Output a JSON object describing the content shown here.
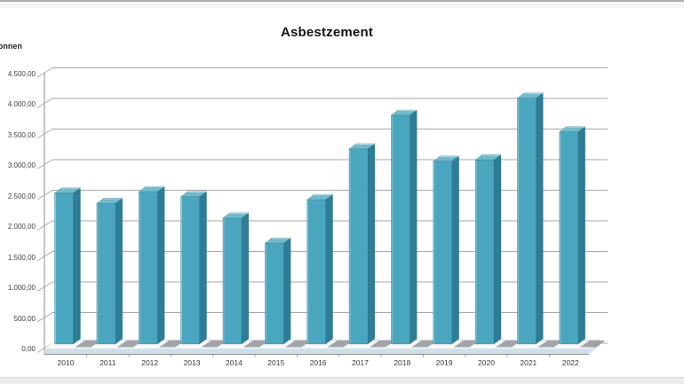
{
  "page": {
    "top_bar_color": "#a9abac",
    "footer_color": "#ebeced",
    "background": "#ffffff"
  },
  "chart_data": {
    "type": "bar",
    "style": "3d-column",
    "title": "Asbestzement",
    "ylabel": "Tonnen",
    "xlabel": "",
    "categories": [
      "2010",
      "2011",
      "2012",
      "2013",
      "2014",
      "2015",
      "2016",
      "2017",
      "2018",
      "2019",
      "2020",
      "2021",
      "2022"
    ],
    "values": [
      2470,
      2300,
      2490,
      2410,
      2060,
      1650,
      2360,
      3190,
      3740,
      2990,
      3010,
      4020,
      3470
    ],
    "ylim": [
      0,
      4500
    ],
    "ytick_step": 500,
    "ytick_labels": [
      "0,00",
      "500,00",
      "1.000,00",
      "1.500,00",
      "2.000,00",
      "2.500,00",
      "3.000,00",
      "3.500,00",
      "4.000,00",
      "4.500,00"
    ],
    "grid": true,
    "legend": null,
    "colors": {
      "bar_front": "#4aa6be",
      "bar_side": "#2e7d96",
      "bar_top": "#72bacb",
      "bar_outline": "#23657d",
      "gridline": "#a7a7a7",
      "axis": "#8f8f8f",
      "floor_front": "#cfe0e9",
      "floor_top": "#f7f8f8",
      "shadow": "#8b8f93",
      "tick_text": "#404040"
    }
  }
}
